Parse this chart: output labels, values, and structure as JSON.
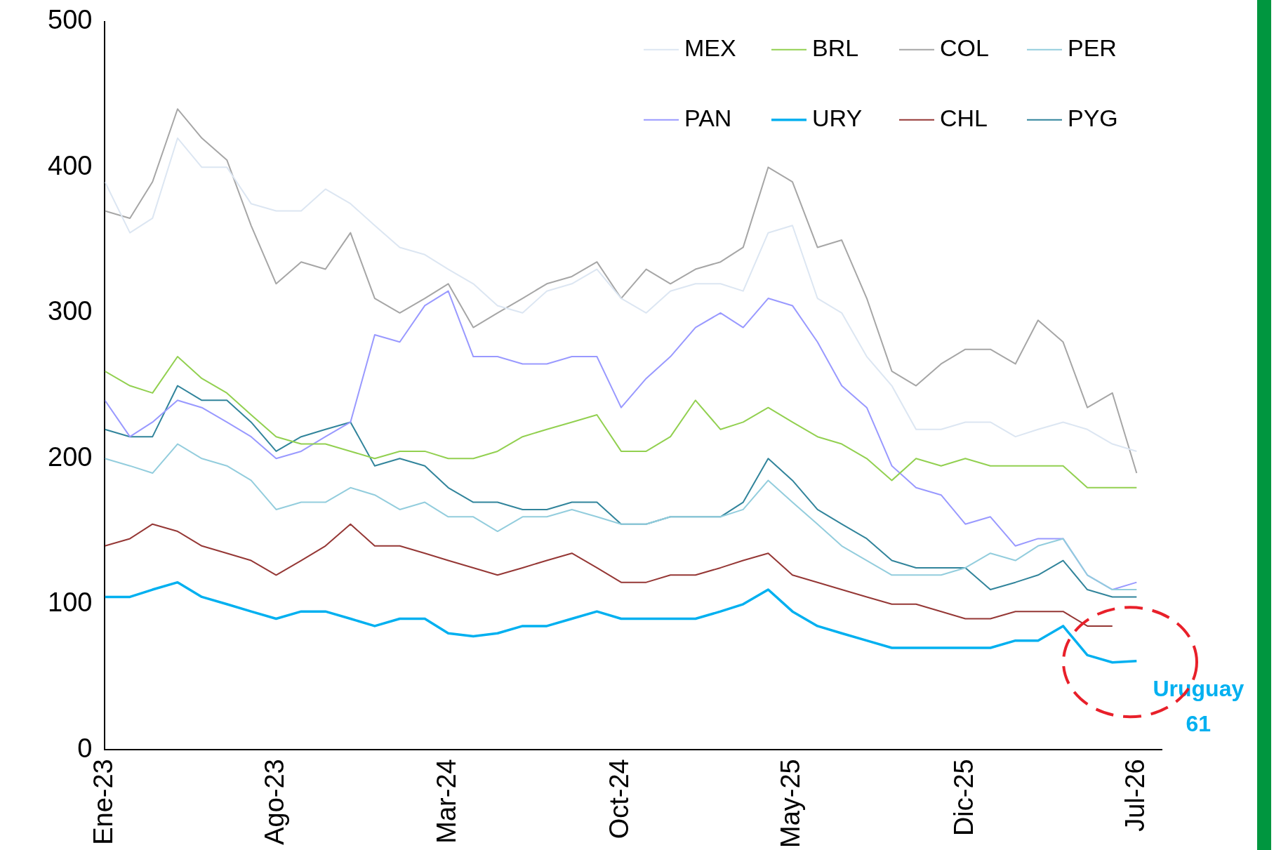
{
  "chart_data": {
    "type": "line",
    "x": [
      "2023-01",
      "2023-02",
      "2023-03",
      "2023-04",
      "2023-05",
      "2023-06",
      "2023-07",
      "2023-08",
      "2023-09",
      "2023-10",
      "2023-11",
      "2023-12",
      "2024-01",
      "2024-02",
      "2024-03",
      "2024-04",
      "2024-05",
      "2024-06",
      "2024-07",
      "2024-08",
      "2024-09",
      "2024-10",
      "2024-11",
      "2024-12",
      "2025-01",
      "2025-02",
      "2025-03",
      "2025-04",
      "2025-05",
      "2025-06",
      "2025-07",
      "2025-08",
      "2025-09",
      "2025-10",
      "2025-11",
      "2025-12",
      "2026-01",
      "2026-02",
      "2026-03",
      "2026-04",
      "2026-05",
      "2026-06",
      "2026-07"
    ],
    "series": [
      {
        "name": "MEX",
        "color": "#dce6f2",
        "values": [
          390,
          355,
          365,
          420,
          400,
          400,
          375,
          370,
          370,
          385,
          375,
          360,
          345,
          340,
          330,
          320,
          305,
          300,
          315,
          320,
          330,
          310,
          300,
          315,
          320,
          320,
          315,
          355,
          360,
          310,
          300,
          270,
          250,
          220,
          220,
          225,
          225,
          215,
          220,
          225,
          220,
          210,
          205
        ]
      },
      {
        "name": "BRL",
        "color": "#92d050",
        "values": [
          260,
          250,
          245,
          270,
          255,
          245,
          230,
          215,
          210,
          210,
          205,
          200,
          205,
          205,
          200,
          200,
          205,
          215,
          220,
          225,
          230,
          205,
          205,
          215,
          240,
          220,
          225,
          235,
          225,
          215,
          210,
          200,
          185,
          200,
          195,
          200,
          195,
          195,
          195,
          195,
          180,
          180,
          180
        ]
      },
      {
        "name": "COL",
        "color": "#a6a6a6",
        "values": [
          370,
          365,
          390,
          440,
          420,
          405,
          360,
          320,
          335,
          330,
          355,
          310,
          300,
          310,
          320,
          290,
          300,
          310,
          320,
          325,
          335,
          310,
          330,
          320,
          330,
          335,
          345,
          400,
          390,
          345,
          350,
          310,
          260,
          250,
          265,
          275,
          275,
          265,
          295,
          280,
          235,
          245,
          190
        ]
      },
      {
        "name": "PER",
        "color": "#93cddd",
        "values": [
          200,
          195,
          190,
          210,
          200,
          195,
          185,
          165,
          170,
          170,
          180,
          175,
          165,
          170,
          160,
          160,
          150,
          160,
          160,
          165,
          160,
          155,
          155,
          160,
          160,
          160,
          165,
          185,
          170,
          155,
          140,
          130,
          120,
          120,
          120,
          125,
          135,
          130,
          140,
          145,
          120,
          110,
          110
        ]
      },
      {
        "name": "PAN",
        "color": "#9999ff",
        "values": [
          240,
          215,
          225,
          240,
          235,
          225,
          215,
          200,
          205,
          215,
          225,
          285,
          280,
          305,
          315,
          270,
          270,
          265,
          265,
          270,
          270,
          235,
          255,
          270,
          290,
          300,
          290,
          310,
          305,
          280,
          250,
          235,
          195,
          180,
          175,
          155,
          160,
          140,
          145,
          145,
          120,
          110,
          115
        ]
      },
      {
        "name": "URY",
        "color": "#00b0f0",
        "values": [
          105,
          105,
          110,
          115,
          105,
          100,
          95,
          90,
          95,
          95,
          90,
          85,
          90,
          90,
          80,
          78,
          80,
          85,
          85,
          90,
          95,
          90,
          90,
          90,
          90,
          95,
          100,
          110,
          95,
          85,
          80,
          75,
          70,
          70,
          70,
          70,
          70,
          75,
          75,
          85,
          65,
          60,
          61
        ]
      },
      {
        "name": "CHL",
        "color": "#953735",
        "values": [
          140,
          145,
          155,
          150,
          140,
          135,
          130,
          120,
          130,
          140,
          155,
          140,
          140,
          135,
          130,
          125,
          120,
          125,
          130,
          135,
          125,
          115,
          115,
          120,
          120,
          125,
          130,
          135,
          120,
          115,
          110,
          105,
          100,
          100,
          95,
          90,
          90,
          95,
          95,
          95,
          85,
          85,
          null
        ]
      },
      {
        "name": "PYG",
        "color": "#31849b",
        "values": [
          220,
          215,
          215,
          250,
          240,
          240,
          225,
          205,
          215,
          220,
          225,
          195,
          200,
          195,
          180,
          170,
          170,
          165,
          165,
          170,
          170,
          155,
          155,
          160,
          160,
          160,
          170,
          200,
          185,
          165,
          155,
          145,
          130,
          125,
          125,
          125,
          110,
          115,
          120,
          130,
          110,
          105,
          105
        ]
      }
    ],
    "xlim": [
      "2023-01",
      "2026-08"
    ],
    "xticks": [
      {
        "value": "2023-01",
        "label": "Ene-23"
      },
      {
        "value": "2023-08",
        "label": "Ago-23"
      },
      {
        "value": "2024-03",
        "label": "Mar-24"
      },
      {
        "value": "2024-10",
        "label": "Oct-24"
      },
      {
        "value": "2025-05",
        "label": "May-25"
      },
      {
        "value": "2025-12",
        "label": "Dic-25"
      },
      {
        "value": "2026-07",
        "label": "Jul-26"
      }
    ],
    "ylim": [
      0,
      500
    ],
    "yticks": [
      0,
      100,
      200,
      300,
      400,
      500
    ],
    "grid": false,
    "legend": "top right",
    "marker": "none",
    "line_style": "solid",
    "annotations": [
      {
        "text": "Uruguay 61",
        "x": "2026-07",
        "y": 61
      }
    ]
  }
}
